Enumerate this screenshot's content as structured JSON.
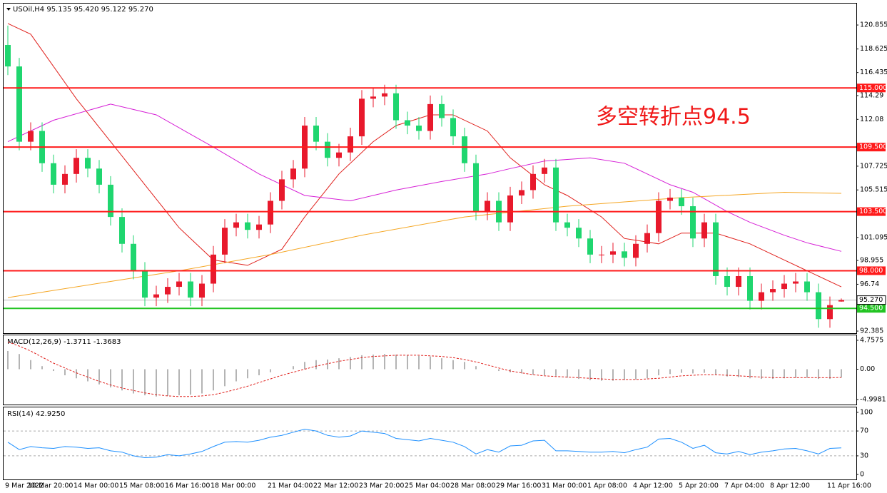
{
  "chart_data": [
    {
      "type": "candlestick",
      "title": "USOil,H4  95.135 95.420 95.122 95.270",
      "annotation": "多空转折点94.5",
      "up_color": "#e8192c",
      "down_color": "#1fd66f",
      "categories": [
        "9 Mar 2022",
        null,
        "10 Mar 20:00",
        null,
        null,
        null,
        "14 Mar 00:00",
        null,
        null,
        null,
        "15 Mar 08:00",
        null,
        null,
        null,
        "16 Mar 16:00",
        null,
        null,
        null,
        "18 Mar 00:00",
        null,
        null,
        null,
        null,
        "21 Mar 04:00",
        null,
        null,
        null,
        "22 Mar 12:00",
        null,
        null,
        null,
        "23 Mar 20:00",
        null,
        null,
        null,
        "25 Mar 04:00",
        null,
        null,
        null,
        "28 Mar 08:00",
        null,
        null,
        null,
        "29 Mar 16:00",
        null,
        null,
        null,
        "31 Mar 00:00",
        null,
        null,
        null,
        "1 Apr 08:00",
        null,
        null,
        null,
        "4 Apr 12:00",
        null,
        null,
        null,
        "5 Apr 20:00",
        null,
        null,
        null,
        "7 Apr 04:00",
        null,
        null,
        null,
        "8 Apr 12:00",
        null,
        null,
        null,
        null,
        "11 Apr 16:00",
        null
      ],
      "open": [
        119,
        117,
        110,
        111,
        108,
        106,
        107,
        108.5,
        107.5,
        106,
        103,
        100.5,
        98,
        95.5,
        95.8,
        96.5,
        97,
        95.5,
        96.8,
        99.5,
        102,
        102.5,
        101.8,
        102.3,
        104.5,
        106.5,
        107.5,
        111.5,
        110,
        108.5,
        109,
        110.5,
        114,
        114.2,
        114.5,
        112,
        111.5,
        111,
        113.5,
        112.2,
        110.5,
        108,
        103.5,
        104.5,
        102.5,
        105,
        105.5,
        107,
        107.6,
        102.5,
        102,
        101,
        99.5,
        99.5,
        99.8,
        99.2,
        100.5,
        101.5,
        104.5,
        104.8,
        104,
        101,
        102.5,
        97.5,
        96.5,
        97.5,
        95.2,
        96,
        96.3,
        96.8,
        97,
        96,
        93.5,
        95.135
      ],
      "high": [
        120.8,
        117.8,
        111.8,
        111.8,
        108.8,
        107.8,
        109.3,
        109.3,
        108.3,
        106.8,
        103.8,
        101.3,
        98.8,
        96.6,
        97.3,
        97.8,
        97.8,
        97.6,
        100.3,
        102.8,
        103.3,
        103.3,
        103.1,
        105.3,
        107.3,
        108.3,
        112.3,
        112.3,
        110.8,
        109.8,
        111.3,
        114.8,
        115,
        115.3,
        115.3,
        112.8,
        112.3,
        114.3,
        114.3,
        113,
        111.3,
        108.8,
        105.3,
        105.3,
        105.8,
        106.3,
        107.8,
        108.4,
        108.4,
        103.3,
        102.8,
        101.8,
        100.3,
        100.6,
        100.6,
        101.3,
        102.3,
        105.3,
        105.6,
        105.6,
        104.8,
        103.3,
        103.3,
        98.3,
        98.3,
        98.3,
        96.8,
        97.1,
        97.6,
        97.8,
        97.8,
        96.8,
        95.6,
        95.42
      ],
      "low": [
        116.2,
        109.2,
        109.2,
        107.2,
        105.2,
        105.2,
        106.2,
        106.7,
        105.2,
        102.2,
        99.7,
        97.2,
        94.7,
        94.7,
        95,
        95.7,
        94.7,
        94.7,
        96,
        98.7,
        101.2,
        101,
        101,
        101.5,
        103.7,
        105.7,
        106.7,
        109.2,
        107.7,
        107.7,
        108.2,
        109.7,
        113.2,
        113.4,
        111.2,
        110.7,
        110.2,
        110.2,
        111.4,
        109.7,
        107.2,
        102.7,
        102.7,
        101.7,
        101.7,
        104.2,
        104.7,
        106.2,
        101.7,
        101.2,
        100.2,
        98.7,
        98.7,
        98.7,
        98.4,
        98.4,
        99.7,
        100.7,
        103.7,
        103.2,
        100.2,
        100.2,
        96.7,
        95.7,
        95.7,
        94.4,
        94.4,
        95.2,
        95.5,
        96,
        95.2,
        92.7,
        92.7,
        95.122
      ],
      "close": [
        117,
        110,
        111,
        108,
        106,
        107,
        108.5,
        107.5,
        106,
        103,
        100.5,
        98,
        95.5,
        95.8,
        96.5,
        97,
        95.5,
        96.8,
        99.5,
        102,
        102.5,
        101.8,
        102.3,
        104.5,
        106.5,
        107.5,
        111.5,
        110,
        108.5,
        109,
        110.5,
        114,
        114.2,
        114.5,
        112,
        111.5,
        111,
        113.5,
        112.2,
        110.5,
        108,
        103.5,
        104.5,
        102.5,
        105,
        105.5,
        107,
        107.6,
        102.5,
        102,
        101,
        99.5,
        99.5,
        99.8,
        99.2,
        100.5,
        101.5,
        104.5,
        104.8,
        104,
        101,
        102.5,
        97.5,
        96.5,
        97.5,
        95.2,
        96,
        96.3,
        96.8,
        97,
        96,
        93.5,
        94.8,
        95.27
      ],
      "lines": [
        {
          "color": "#e0201c",
          "x": [
            0,
            2,
            6,
            9,
            12,
            15,
            18,
            21,
            24,
            26,
            29,
            32,
            34,
            37,
            39,
            42,
            44,
            47,
            49,
            52,
            54,
            57,
            59,
            62,
            65,
            68,
            70,
            73
          ],
          "values": [
            121,
            120,
            114,
            110,
            106,
            102,
            99,
            98.5,
            100,
            103,
            107,
            110,
            111.5,
            112.5,
            112.5,
            111,
            108.5,
            106,
            105,
            103,
            101,
            100.5,
            101.5,
            101.5,
            100.5,
            99,
            98,
            96.5
          ]
        },
        {
          "color": "#d61fd6",
          "x": [
            0,
            4,
            9,
            13,
            18,
            22,
            26,
            30,
            34,
            38,
            42,
            44,
            47,
            51,
            54,
            56,
            58,
            60,
            63,
            65,
            68,
            70,
            73
          ],
          "values": [
            110,
            112,
            113.5,
            112.5,
            109.5,
            107,
            105,
            104.5,
            105.5,
            106.3,
            107,
            107.5,
            108.2,
            108.5,
            108,
            107,
            106,
            105.3,
            103.5,
            102.5,
            101.3,
            100.6,
            99.8
          ]
        },
        {
          "color": "#f5a623",
          "x": [
            0,
            9,
            15,
            23,
            31,
            40,
            49,
            59,
            68,
            73
          ],
          "values": [
            95.5,
            97,
            98,
            99.5,
            101.3,
            103,
            104,
            104.8,
            105.3,
            105.2
          ]
        }
      ],
      "levels": [
        {
          "value": 115,
          "label": "115.000",
          "color": "#ff1a1a"
        },
        {
          "value": 109.5,
          "label": "109.500",
          "color": "#ff1a1a"
        },
        {
          "value": 103.5,
          "label": "103.500",
          "color": "#ff1a1a"
        },
        {
          "value": 98,
          "label": "98.000",
          "color": "#ff1a1a"
        },
        {
          "value": 94.5,
          "label": "94.500",
          "color": "#22c422"
        }
      ],
      "price_line": {
        "value": 95.27,
        "label": "95.270"
      },
      "ylim": [
        92.19,
        122.85
      ],
      "yticks": [
        120.855,
        118.625,
        116.435,
        114.29,
        112.08,
        107.725,
        105.515,
        101.095,
        98.955,
        96.74,
        92.385
      ]
    },
    {
      "type": "macd",
      "title": "MACD(12,26,9) -1.3711 -1.3683",
      "bar_color": "#b4b4b4",
      "signal_color": "#e0201c",
      "values": [
        3,
        2.5,
        1.5,
        0.5,
        -0.3,
        -1,
        -1.5,
        -2,
        -2.5,
        -3,
        -3.5,
        -4,
        -4.3,
        -4.5,
        -4.4,
        -4.3,
        -4.2,
        -4,
        -3.5,
        -2.8,
        -2,
        -1.5,
        -1,
        -0.5,
        0,
        0.5,
        1.2,
        1.5,
        1.6,
        1.8,
        2,
        2.3,
        2.4,
        2.5,
        2.4,
        2.3,
        2.2,
        2.1,
        1.8,
        1.5,
        1.2,
        0.5,
        0,
        -0.3,
        -0.5,
        -0.7,
        -0.9,
        -1,
        -1.1,
        -1.4,
        -1.6,
        -1.8,
        -1.9,
        -1.9,
        -1.8,
        -1.7,
        -1.5,
        -1,
        -0.8,
        -0.6,
        -0.7,
        -0.6,
        -0.9,
        -1.2,
        -1.3,
        -1.5,
        -1.6,
        -1.6,
        -1.5,
        -1.4,
        -1.4,
        -1.6,
        -1.6,
        -1.3711
      ],
      "signal": [
        4.5,
        3.8,
        3,
        2,
        1,
        0.2,
        -0.6,
        -1.3,
        -2,
        -2.6,
        -3.1,
        -3.5,
        -3.9,
        -4.2,
        -4.4,
        -4.5,
        -4.5,
        -4.4,
        -4.2,
        -3.8,
        -3.3,
        -2.8,
        -2.2,
        -1.6,
        -1,
        -0.5,
        0,
        0.5,
        0.9,
        1.3,
        1.6,
        1.9,
        2.1,
        2.2,
        2.3,
        2.3,
        2.3,
        2.2,
        2.1,
        1.9,
        1.6,
        1.2,
        0.7,
        0.2,
        -0.3,
        -0.6,
        -0.9,
        -1.1,
        -1.2,
        -1.3,
        -1.4,
        -1.5,
        -1.6,
        -1.7,
        -1.7,
        -1.7,
        -1.6,
        -1.5,
        -1.3,
        -1.1,
        -1,
        -0.9,
        -0.9,
        -1,
        -1.1,
        -1.2,
        -1.3,
        -1.4,
        -1.4,
        -1.4,
        -1.4,
        -1.4,
        -1.4,
        -1.3683
      ],
      "ylim": [
        -5.82,
        5.58
      ],
      "yticks": [
        4.7575,
        {
          "value": 0,
          "label": "0.00"
        },
        -4.9981
      ]
    },
    {
      "type": "line",
      "title": "RSI(14) 42.9250",
      "color": "#1e90ff",
      "values": [
        52,
        40,
        45,
        43,
        42,
        45,
        44,
        42,
        43,
        38,
        36,
        30,
        27,
        28,
        32,
        30,
        33,
        37,
        45,
        52,
        53,
        52,
        55,
        60,
        63,
        68,
        73,
        70,
        63,
        60,
        62,
        70,
        68,
        66,
        58,
        56,
        54,
        58,
        55,
        52,
        45,
        33,
        40,
        36,
        46,
        47,
        54,
        55,
        38,
        38,
        37,
        36,
        36,
        37,
        35,
        40,
        44,
        57,
        58,
        52,
        42,
        47,
        35,
        33,
        37,
        32,
        36,
        38,
        41,
        42,
        38,
        33,
        42,
        42.925
      ],
      "ylim": [
        -8,
        108
      ],
      "yticks": [
        100,
        70,
        30,
        0
      ]
    }
  ]
}
